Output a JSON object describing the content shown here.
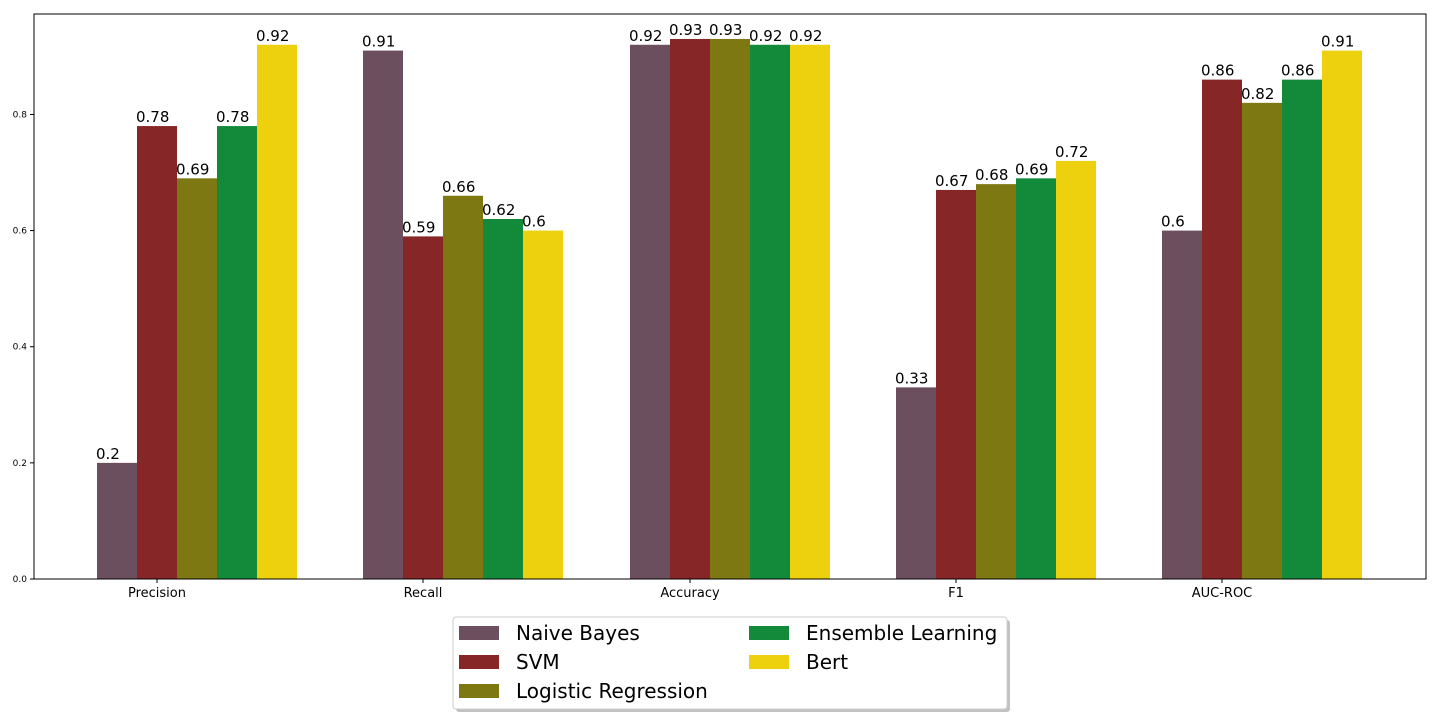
{
  "chart_data": {
    "type": "bar",
    "title": "",
    "xlabel": "",
    "ylabel": "",
    "categories": [
      "Precision",
      "Recall",
      "Accuracy",
      "F1",
      "AUC-ROC"
    ],
    "series": [
      {
        "name": "Naive Bayes",
        "color": "#6b4f5e",
        "values": [
          0.2,
          0.91,
          0.92,
          0.33,
          0.6
        ]
      },
      {
        "name": "SVM",
        "color": "#862626",
        "values": [
          0.78,
          0.59,
          0.93,
          0.67,
          0.86
        ]
      },
      {
        "name": "Logistic Regression",
        "color": "#7d7812",
        "values": [
          0.69,
          0.66,
          0.93,
          0.68,
          0.82
        ]
      },
      {
        "name": "Ensemble Learning",
        "color": "#138a3a",
        "values": [
          0.78,
          0.62,
          0.92,
          0.69,
          0.86
        ]
      },
      {
        "name": "Bert",
        "color": "#edd00e",
        "values": [
          0.92,
          0.6,
          0.92,
          0.72,
          0.91
        ]
      }
    ],
    "ylim": [
      0,
      0.973
    ],
    "yticks": [
      "0.0",
      "0.2",
      "0.4",
      "0.6",
      "0.8"
    ],
    "grid": false,
    "legend_position": "bottom-center, below plot, 2 columns"
  }
}
